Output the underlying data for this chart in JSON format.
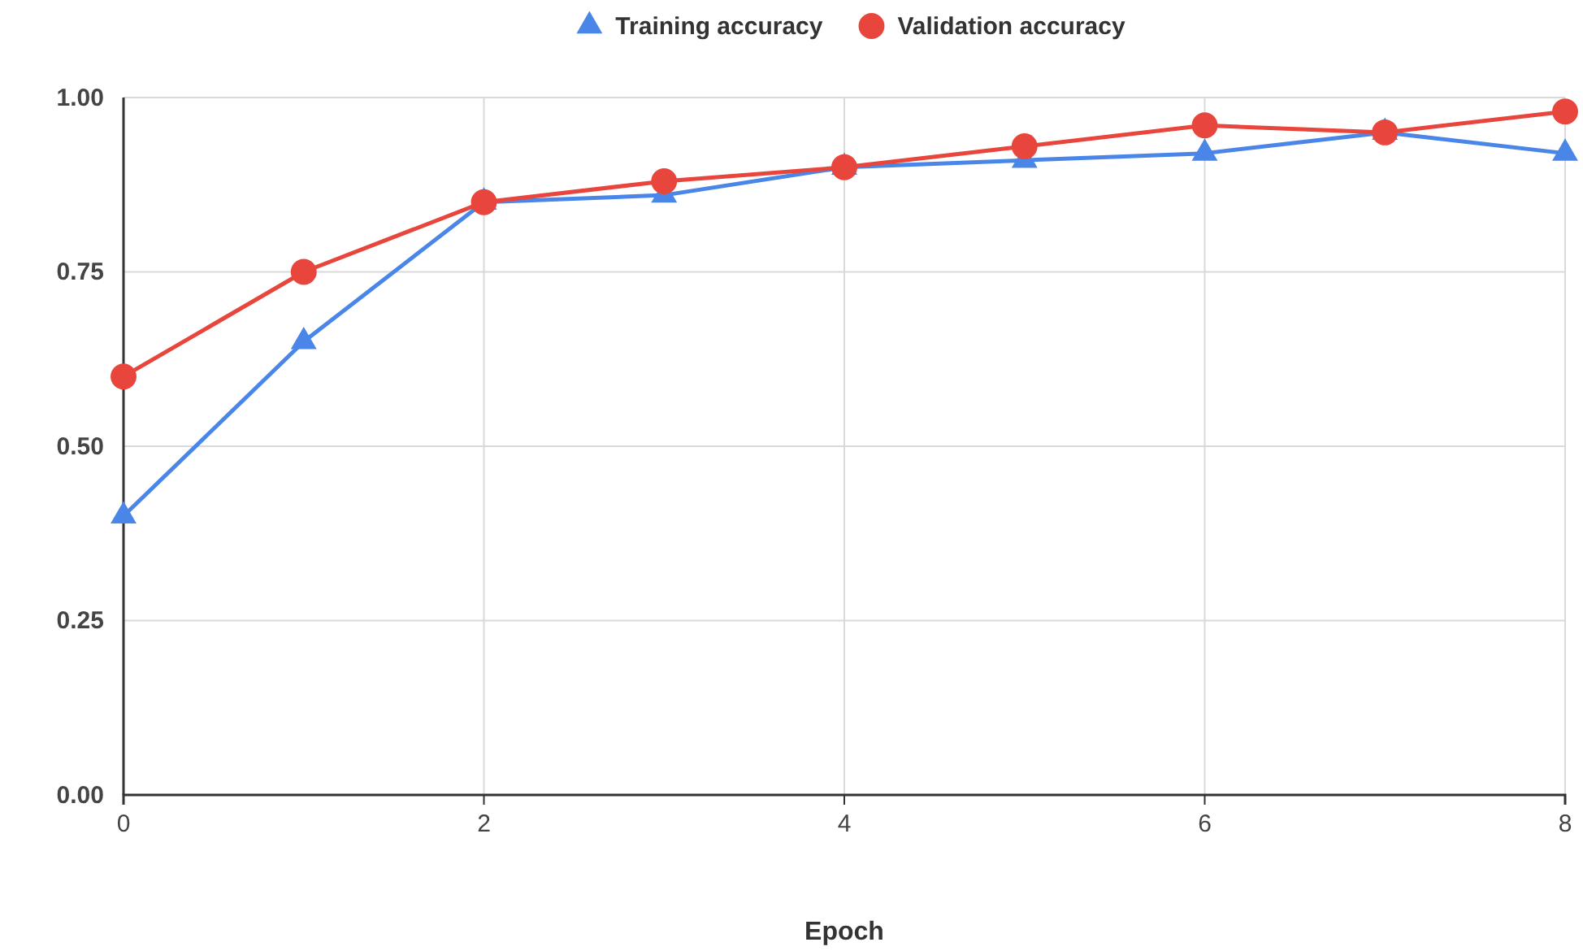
{
  "chart_data": {
    "type": "line",
    "xlabel": "Epoch",
    "x": [
      0,
      1,
      2,
      3,
      4,
      5,
      6,
      7,
      8
    ],
    "series": [
      {
        "name": "Training accuracy",
        "color": "#4a86e8",
        "marker": "triangle",
        "values": [
          0.4,
          0.65,
          0.85,
          0.86,
          0.9,
          0.91,
          0.92,
          0.95,
          0.92
        ]
      },
      {
        "name": "Validation accuracy",
        "color": "#e8453c",
        "marker": "circle",
        "values": [
          0.6,
          0.75,
          0.85,
          0.88,
          0.9,
          0.93,
          0.96,
          0.95,
          0.98
        ]
      }
    ],
    "xlim": [
      0,
      8
    ],
    "xticks": [
      0,
      2,
      4,
      6,
      8
    ],
    "ylim": [
      0,
      1
    ],
    "yticks": [
      {
        "value": 0,
        "label": "0.00"
      },
      {
        "value": 0.25,
        "label": "0.25"
      },
      {
        "value": 0.5,
        "label": "0.50"
      },
      {
        "value": 0.75,
        "label": "0.75"
      },
      {
        "value": 1,
        "label": "1.00"
      }
    ],
    "grid": true,
    "legend": "top",
    "line_style": "solid"
  }
}
